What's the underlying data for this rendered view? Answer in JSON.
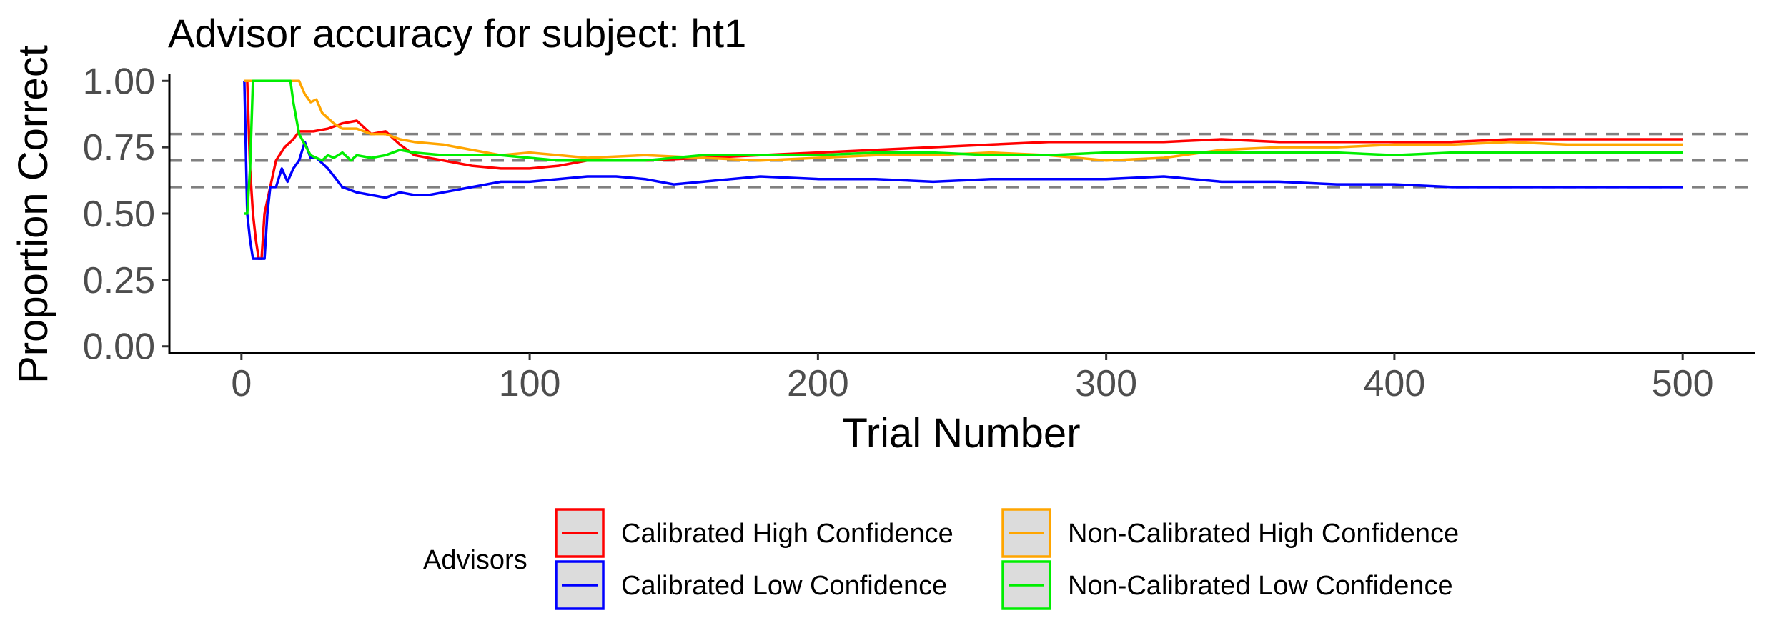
{
  "chart_data": {
    "type": "line",
    "title": "Advisor accuracy for subject: ht1",
    "xlabel": "Trial Number",
    "ylabel": "Proportion Correct",
    "xlim": [
      -25,
      525
    ],
    "ylim": [
      -0.025,
      1.025
    ],
    "x_ticks": [
      0,
      100,
      200,
      300,
      400,
      500
    ],
    "y_ticks": [
      0.0,
      0.25,
      0.5,
      0.75,
      1.0
    ],
    "x_tick_labels": [
      "0",
      "100",
      "200",
      "300",
      "400",
      "500"
    ],
    "y_tick_labels": [
      "0.00",
      "0.25",
      "0.50",
      "0.75",
      "1.00"
    ],
    "grid": false,
    "reference_lines": [
      {
        "y": 0.8,
        "style": "dashed",
        "color": "#808080"
      },
      {
        "y": 0.7,
        "style": "dashed",
        "color": "#808080"
      },
      {
        "y": 0.6,
        "style": "dashed",
        "color": "#808080"
      }
    ],
    "legend": {
      "title": "Advisors",
      "position": "bottom"
    },
    "series": [
      {
        "name": "Calibrated High Confidence",
        "color": "#ff0000",
        "x": [
          1,
          2,
          3,
          4,
          5,
          6,
          7,
          8,
          10,
          12,
          15,
          18,
          20,
          25,
          30,
          35,
          40,
          45,
          50,
          55,
          60,
          70,
          80,
          90,
          100,
          110,
          120,
          140,
          160,
          180,
          200,
          220,
          240,
          260,
          280,
          300,
          320,
          340,
          360,
          380,
          400,
          420,
          440,
          460,
          480,
          500
        ],
        "y": [
          1.0,
          1.0,
          0.67,
          0.5,
          0.4,
          0.33,
          0.33,
          0.5,
          0.6,
          0.7,
          0.75,
          0.78,
          0.81,
          0.81,
          0.82,
          0.84,
          0.85,
          0.8,
          0.81,
          0.76,
          0.72,
          0.7,
          0.68,
          0.67,
          0.67,
          0.68,
          0.7,
          0.7,
          0.71,
          0.72,
          0.73,
          0.74,
          0.75,
          0.76,
          0.77,
          0.77,
          0.77,
          0.78,
          0.77,
          0.77,
          0.77,
          0.77,
          0.78,
          0.78,
          0.78,
          0.78
        ]
      },
      {
        "name": "Calibrated Low Confidence",
        "color": "#0000ff",
        "x": [
          1,
          2,
          3,
          4,
          6,
          8,
          9,
          10,
          12,
          14,
          16,
          18,
          20,
          22,
          24,
          26,
          30,
          35,
          40,
          45,
          50,
          55,
          60,
          65,
          70,
          80,
          90,
          100,
          110,
          120,
          130,
          140,
          150,
          160,
          180,
          200,
          220,
          240,
          260,
          280,
          300,
          320,
          340,
          360,
          380,
          400,
          420,
          440,
          460,
          480,
          500
        ],
        "y": [
          1.0,
          0.5,
          0.4,
          0.33,
          0.33,
          0.33,
          0.5,
          0.6,
          0.6,
          0.67,
          0.62,
          0.67,
          0.7,
          0.77,
          0.71,
          0.71,
          0.67,
          0.6,
          0.58,
          0.57,
          0.56,
          0.58,
          0.57,
          0.57,
          0.58,
          0.6,
          0.62,
          0.62,
          0.63,
          0.64,
          0.64,
          0.63,
          0.61,
          0.62,
          0.64,
          0.63,
          0.63,
          0.62,
          0.63,
          0.63,
          0.63,
          0.64,
          0.62,
          0.62,
          0.61,
          0.61,
          0.6,
          0.6,
          0.6,
          0.6,
          0.6
        ]
      },
      {
        "name": "Non-Calibrated High Confidence",
        "color": "#ffa500",
        "x": [
          1,
          2,
          3,
          5,
          8,
          10,
          15,
          18,
          20,
          22,
          24,
          26,
          28,
          30,
          32,
          35,
          40,
          45,
          50,
          55,
          60,
          70,
          80,
          90,
          100,
          110,
          120,
          140,
          160,
          180,
          200,
          220,
          240,
          260,
          280,
          300,
          320,
          340,
          360,
          380,
          400,
          420,
          440,
          460,
          480,
          500
        ],
        "y": [
          1.0,
          1.0,
          1.0,
          1.0,
          1.0,
          1.0,
          1.0,
          1.0,
          1.0,
          0.95,
          0.92,
          0.93,
          0.88,
          0.86,
          0.84,
          0.82,
          0.82,
          0.8,
          0.8,
          0.78,
          0.77,
          0.76,
          0.74,
          0.72,
          0.73,
          0.72,
          0.71,
          0.72,
          0.71,
          0.7,
          0.71,
          0.72,
          0.72,
          0.73,
          0.72,
          0.7,
          0.71,
          0.74,
          0.75,
          0.75,
          0.76,
          0.76,
          0.77,
          0.76,
          0.76,
          0.76
        ]
      },
      {
        "name": "Non-Calibrated Low Confidence",
        "color": "#00ee00",
        "x": [
          1,
          2,
          3,
          4,
          5,
          8,
          10,
          14,
          17,
          18,
          20,
          22,
          24,
          26,
          28,
          30,
          32,
          35,
          38,
          40,
          45,
          50,
          55,
          60,
          70,
          80,
          90,
          100,
          110,
          120,
          140,
          160,
          180,
          200,
          220,
          240,
          260,
          280,
          300,
          320,
          340,
          360,
          380,
          400,
          420,
          440,
          460,
          480,
          500
        ],
        "y": [
          0.5,
          0.5,
          0.67,
          1.0,
          1.0,
          1.0,
          1.0,
          1.0,
          1.0,
          0.92,
          0.8,
          0.76,
          0.72,
          0.71,
          0.7,
          0.72,
          0.71,
          0.73,
          0.7,
          0.72,
          0.71,
          0.72,
          0.74,
          0.73,
          0.72,
          0.72,
          0.72,
          0.71,
          0.7,
          0.7,
          0.7,
          0.72,
          0.72,
          0.72,
          0.73,
          0.73,
          0.72,
          0.72,
          0.73,
          0.73,
          0.73,
          0.73,
          0.73,
          0.72,
          0.73,
          0.73,
          0.73,
          0.73,
          0.73
        ]
      }
    ]
  }
}
